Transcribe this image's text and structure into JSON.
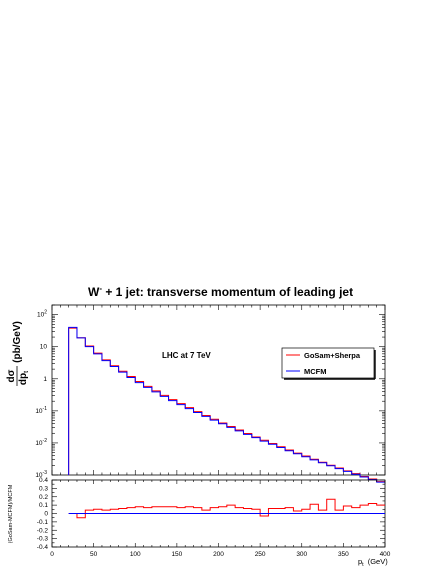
{
  "chart_data": [
    {
      "type": "line",
      "title_main": "W",
      "title_sup": "-",
      "title_rest": " + 1 jet: transverse momentum of leading jet",
      "ylabel_num": "dσ",
      "ylabel_den": "dp",
      "ylabel_den_sub": "t",
      "ylabel_unit": "(pb/GeV)",
      "annotation": "LHC at 7 TeV",
      "yscale": "log",
      "xlim": [
        0,
        400
      ],
      "ylim": [
        0.001,
        200
      ],
      "y_ticks": [
        {
          "b": "10",
          "e": "2"
        },
        {
          "b": "10",
          "e": ""
        },
        {
          "b": "1",
          "e": ""
        },
        {
          "b": "10",
          "e": "-1"
        },
        {
          "b": "10",
          "e": "-2"
        },
        {
          "b": "10",
          "e": "-3"
        }
      ],
      "x_edges": [
        20,
        30,
        40,
        50,
        60,
        70,
        80,
        90,
        100,
        110,
        120,
        130,
        140,
        150,
        160,
        170,
        180,
        190,
        200,
        210,
        220,
        230,
        240,
        250,
        260,
        270,
        280,
        290,
        300,
        310,
        320,
        330,
        340,
        350,
        360,
        370,
        380,
        390,
        400
      ],
      "series": [
        {
          "name": "GoSam+Sherpa",
          "color": "#ff0000",
          "values": [
            38,
            19,
            10.5,
            6.3,
            3.9,
            2.55,
            1.72,
            1.18,
            0.82,
            0.58,
            0.42,
            0.305,
            0.225,
            0.168,
            0.126,
            0.095,
            0.072,
            0.055,
            0.042,
            0.0325,
            0.0252,
            0.0197,
            0.0153,
            0.0121,
            0.0096,
            0.0076,
            0.006,
            0.0048,
            0.0039,
            0.0031,
            0.0025,
            0.00202,
            0.00165,
            0.00135,
            0.0011,
            0.0009,
            0.00075,
            0.00062
          ]
        },
        {
          "name": "MCFM",
          "color": "#0000ff",
          "values": [
            40,
            18.8,
            10.1,
            6.0,
            3.7,
            2.42,
            1.62,
            1.1,
            0.76,
            0.54,
            0.39,
            0.283,
            0.208,
            0.156,
            0.117,
            0.0885,
            0.0672,
            0.0514,
            0.0395,
            0.0305,
            0.0237,
            0.0185,
            0.0146,
            0.0114,
            0.0091,
            0.0072,
            0.0057,
            0.0046,
            0.0037,
            0.00295,
            0.0024,
            0.00195,
            0.00158,
            0.0013,
            0.00106,
            0.00087,
            0.00072,
            0.0006
          ]
        }
      ],
      "legend_position": "top-right"
    },
    {
      "type": "line",
      "ylabel": "(GoSam-MCFM)/MCFM",
      "xlabel": "p",
      "xlabel_sub": "t",
      "xlabel_unit": "(GeV)",
      "xlim": [
        0,
        400
      ],
      "ylim": [
        -0.4,
        0.4
      ],
      "x_ticks": [
        "0",
        "50",
        "100",
        "150",
        "200",
        "250",
        "300",
        "350",
        "400"
      ],
      "y_ticks": [
        "0.4",
        "0.3",
        "0.2",
        "0.1",
        "0",
        "-0.1",
        "-0.2",
        "-0.3",
        "-0.4"
      ],
      "x_edges": [
        20,
        30,
        40,
        50,
        60,
        70,
        80,
        90,
        100,
        110,
        120,
        130,
        140,
        150,
        160,
        170,
        180,
        190,
        200,
        210,
        220,
        230,
        240,
        250,
        260,
        270,
        280,
        290,
        300,
        310,
        320,
        330,
        340,
        350,
        360,
        370,
        380,
        390,
        400
      ],
      "series": [
        {
          "name": "GoSam+Sherpa",
          "color": "#ff0000",
          "values": [
            0.0,
            -0.05,
            0.04,
            0.05,
            0.04,
            0.05,
            0.06,
            0.07,
            0.08,
            0.07,
            0.08,
            0.08,
            0.08,
            0.07,
            0.08,
            0.07,
            0.04,
            0.07,
            0.08,
            0.1,
            0.07,
            0.06,
            0.05,
            -0.03,
            0.06,
            0.06,
            0.07,
            0.03,
            0.05,
            0.11,
            0.04,
            0.17,
            0.04,
            0.09,
            0.07,
            0.1,
            0.12,
            0.1
          ]
        },
        {
          "name": "MCFM",
          "color": "#0000ff",
          "values": [
            0,
            0,
            0,
            0,
            0,
            0,
            0,
            0,
            0,
            0,
            0,
            0,
            0,
            0,
            0,
            0,
            0,
            0,
            0,
            0,
            0,
            0,
            0,
            0,
            0,
            0,
            0,
            0,
            0,
            0,
            0,
            0,
            0,
            0,
            0,
            0,
            0,
            0
          ]
        }
      ]
    }
  ]
}
